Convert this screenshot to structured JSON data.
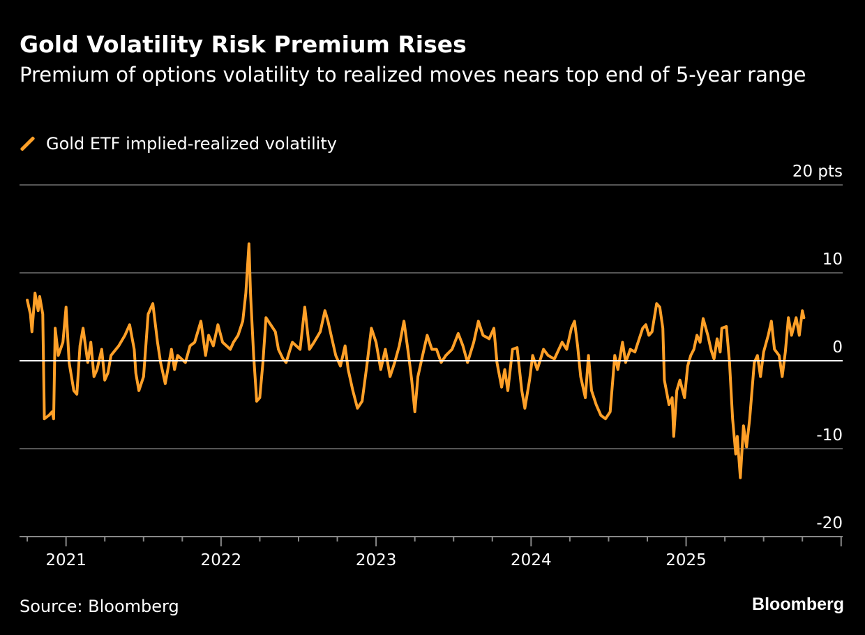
{
  "header": {
    "title": "Gold Volatility Risk Premium Rises",
    "subtitle": "Premium of options volatility to realized moves nears top end of 5-year range"
  },
  "footer": {
    "source": "Source: Bloomberg",
    "logo": "Bloomberg"
  },
  "colors": {
    "line": "#ffa028",
    "background": "#000000",
    "grid": "#555555",
    "zero": "#ffffff"
  },
  "chart_data": {
    "type": "line",
    "title": "Gold Volatility Risk Premium Rises",
    "subtitle": "Premium of options volatility to realized moves nears top end of 5-year range",
    "ylim": [
      -20,
      20
    ],
    "xlim": [
      2020.7,
      2026.01
    ],
    "y_unit_label": "20 pts",
    "y_ticks": [
      {
        "v": 20,
        "label": "20 pts"
      },
      {
        "v": 10,
        "label": "10"
      },
      {
        "v": 0,
        "label": "0"
      },
      {
        "v": -10,
        "label": "-10"
      },
      {
        "v": -20,
        "label": "-20"
      }
    ],
    "x_ticks": [
      {
        "v": 2021,
        "label": "2021"
      },
      {
        "v": 2022,
        "label": "2022"
      },
      {
        "v": 2023,
        "label": "2023"
      },
      {
        "v": 2024,
        "label": "2024"
      },
      {
        "v": 2025,
        "label": "2025"
      }
    ],
    "grid": true,
    "legend_position": "top-left",
    "series": [
      {
        "name": "Gold ETF implied-realized volatility",
        "color": "#ffa028",
        "x": [
          2020.75,
          2020.77,
          2020.78,
          2020.8,
          2020.82,
          2020.83,
          2020.85,
          2020.86,
          2020.89,
          2020.91,
          2020.92,
          2020.93,
          2020.95,
          2020.98,
          2021.0,
          2021.02,
          2021.05,
          2021.07,
          2021.09,
          2021.11,
          2021.14,
          2021.16,
          2021.18,
          2021.2,
          2021.23,
          2021.25,
          2021.27,
          2021.29,
          2021.34,
          2021.38,
          2021.41,
          2021.44,
          2021.45,
          2021.47,
          2021.5,
          2021.53,
          2021.56,
          2021.59,
          2021.61,
          2021.64,
          2021.68,
          2021.7,
          2021.72,
          2021.77,
          2021.8,
          2021.83,
          2021.87,
          2021.9,
          2021.92,
          2021.95,
          2021.98,
          2022.01,
          2022.06,
          2022.08,
          2022.11,
          2022.14,
          2022.16,
          2022.18,
          2022.19,
          2022.21,
          2022.23,
          2022.25,
          2022.27,
          2022.29,
          2022.32,
          2022.35,
          2022.37,
          2022.4,
          2022.42,
          2022.44,
          2022.46,
          2022.51,
          2022.54,
          2022.57,
          2022.6,
          2022.64,
          2022.67,
          2022.69,
          2022.71,
          2022.74,
          2022.77,
          2022.8,
          2022.82,
          2022.85,
          2022.88,
          2022.91,
          2022.94,
          2022.97,
          2023.0,
          2023.03,
          2023.06,
          2023.09,
          2023.12,
          2023.15,
          2023.18,
          2023.21,
          2023.23,
          2023.25,
          2023.27,
          2023.3,
          2023.33,
          2023.36,
          2023.39,
          2023.42,
          2023.45,
          2023.49,
          2023.53,
          2023.56,
          2023.59,
          2023.63,
          2023.66,
          2023.69,
          2023.73,
          2023.76,
          2023.78,
          2023.81,
          2023.83,
          2023.85,
          2023.88,
          2023.91,
          2023.94,
          2023.96,
          2023.99,
          2024.01,
          2024.04,
          2024.08,
          2024.11,
          2024.15,
          2024.2,
          2024.23,
          2024.26,
          2024.28,
          2024.3,
          2024.32,
          2024.35,
          2024.37,
          2024.39,
          2024.42,
          2024.45,
          2024.48,
          2024.51,
          2024.54,
          2024.56,
          2024.59,
          2024.61,
          2024.64,
          2024.67,
          2024.69,
          2024.72,
          2024.74,
          2024.76,
          2024.78,
          2024.81,
          2024.83,
          2024.85,
          2024.86,
          2024.89,
          2024.91,
          2024.92,
          2024.94,
          2024.96,
          2024.99,
          2025.01,
          2025.03,
          2025.05,
          2025.07,
          2025.09,
          2025.11,
          2025.14,
          2025.16,
          2025.18,
          2025.2,
          2025.22,
          2025.23,
          2025.26,
          2025.28,
          2025.3,
          2025.32,
          2025.33,
          2025.35,
          2025.37,
          2025.39,
          2025.41,
          2025.44,
          2025.46,
          2025.48,
          2025.5,
          2025.53,
          2025.55,
          2025.57,
          2025.6,
          2025.62,
          2025.64,
          2025.66,
          2025.68,
          2025.71,
          2025.73,
          2025.75,
          2025.76
        ],
        "y": [
          6.9,
          5.3,
          3.3,
          7.7,
          5.7,
          7.3,
          5.3,
          -6.6,
          -6.2,
          -5.8,
          -6.6,
          3.7,
          0.6,
          2.1,
          6.1,
          -0.2,
          -3.4,
          -3.8,
          1.7,
          3.7,
          -0.2,
          2.1,
          -1.8,
          -1.0,
          1.3,
          -2.2,
          -1.4,
          0.6,
          1.7,
          2.9,
          4.1,
          1.3,
          -1.4,
          -3.4,
          -1.8,
          5.3,
          6.5,
          2.1,
          -0.2,
          -2.6,
          1.3,
          -1.0,
          0.6,
          -0.2,
          1.7,
          2.1,
          4.5,
          0.6,
          2.9,
          1.7,
          4.1,
          2.1,
          1.3,
          2.1,
          2.9,
          4.5,
          7.7,
          13.3,
          7.7,
          0.6,
          -4.6,
          -4.2,
          -0.2,
          4.9,
          4.1,
          3.3,
          1.3,
          0.2,
          -0.2,
          1.0,
          2.1,
          1.3,
          6.1,
          1.3,
          2.1,
          3.3,
          5.7,
          4.5,
          2.9,
          0.6,
          -0.6,
          1.7,
          -1.0,
          -3.4,
          -5.4,
          -4.6,
          -0.6,
          3.7,
          2.1,
          -1.0,
          1.3,
          -1.8,
          -0.2,
          1.7,
          4.5,
          0.6,
          -2.2,
          -5.8,
          -1.8,
          0.6,
          2.9,
          1.3,
          1.3,
          -0.2,
          0.6,
          1.3,
          3.1,
          1.7,
          -0.2,
          2.1,
          4.5,
          2.9,
          2.5,
          3.7,
          -0.2,
          -3.0,
          -1.0,
          -3.4,
          1.3,
          1.5,
          -3.4,
          -5.4,
          -2.2,
          0.6,
          -1.0,
          1.3,
          0.6,
          0.2,
          2.1,
          1.3,
          3.7,
          4.5,
          1.7,
          -1.8,
          -4.2,
          0.6,
          -3.4,
          -5.0,
          -6.2,
          -6.6,
          -5.8,
          0.6,
          -1.0,
          2.1,
          -0.2,
          1.3,
          1.0,
          2.1,
          3.7,
          4.1,
          2.9,
          3.3,
          6.5,
          6.1,
          3.7,
          -2.2,
          -5.0,
          -4.2,
          -8.6,
          -3.4,
          -2.2,
          -4.2,
          -0.6,
          0.6,
          1.3,
          2.9,
          2.1,
          4.8,
          2.9,
          1.3,
          0.2,
          2.5,
          1.0,
          3.7,
          3.9,
          -0.2,
          -6.6,
          -10.6,
          -8.6,
          -13.3,
          -7.4,
          -9.8,
          -6.6,
          -0.2,
          0.6,
          -1.8,
          1.0,
          2.9,
          4.5,
          1.3,
          0.6,
          -1.8,
          1.0,
          4.9,
          2.9,
          4.9,
          2.9,
          5.7,
          4.9
        ]
      }
    ]
  }
}
